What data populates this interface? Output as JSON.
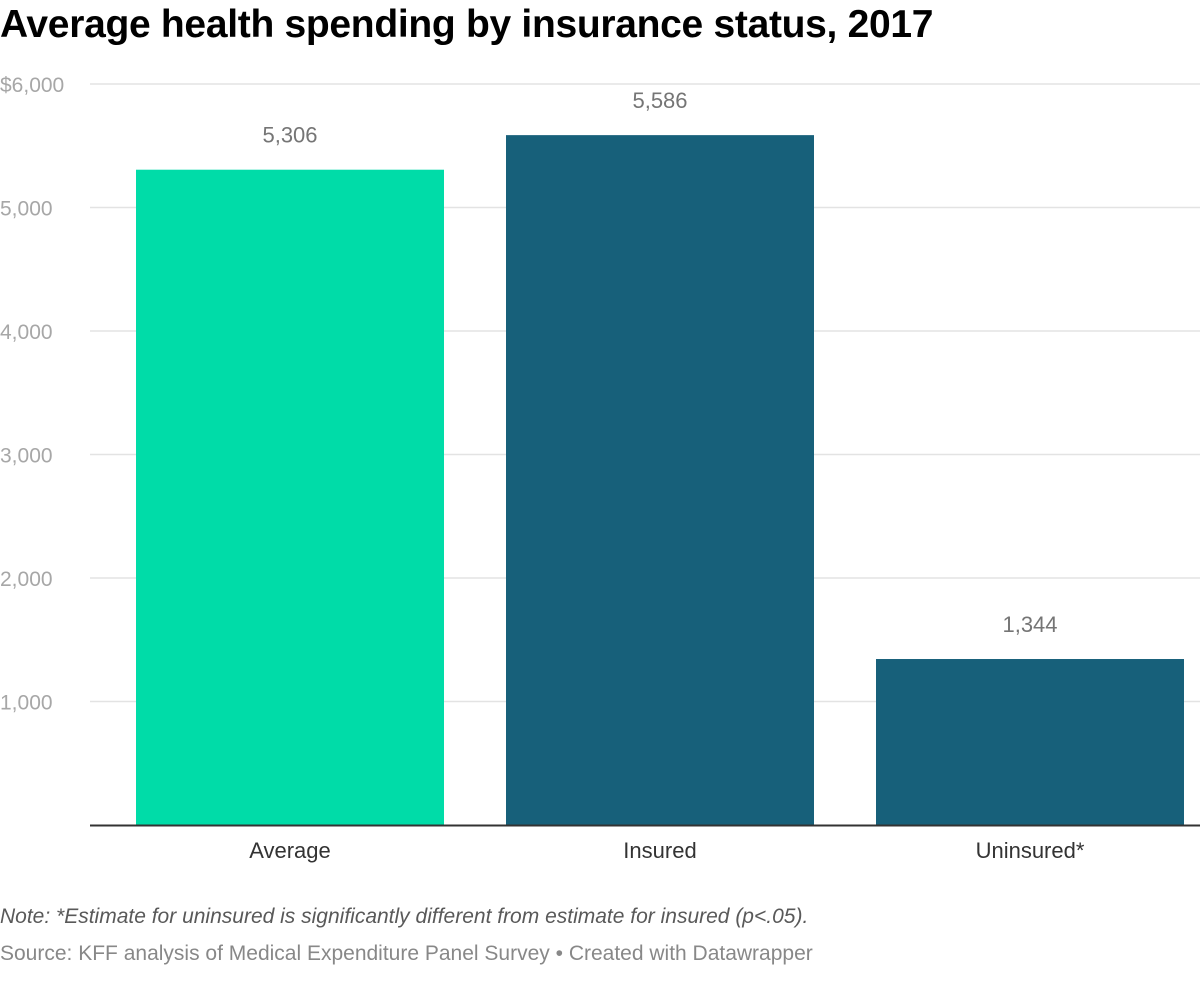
{
  "title": "Average health spending by insurance status, 2017",
  "note": "Note: *Estimate for uninsured is significantly different from estimate for insured (p<.05).",
  "source": {
    "prefix": "Source: ",
    "text": "KFF analysis of Medical Expenditure Panel Survey",
    "separator": " • ",
    "credit": "Created with Datawrapper"
  },
  "colors": {
    "average": "#00dca8",
    "insured": "#17607a",
    "uninsured": "#17607a",
    "grid": "#e3e3e3",
    "axis": "#333333",
    "tick_text": "#a7a7a7",
    "value_text": "#757575",
    "category_text": "#333333"
  },
  "chart_data": {
    "type": "bar",
    "categories": [
      "Average",
      "Insured",
      "Uninsured*"
    ],
    "values": [
      5306,
      5586,
      1344
    ],
    "value_labels": [
      "5,306",
      "5,586",
      "1,344"
    ],
    "ylim": [
      0,
      6000
    ],
    "yticks": [
      1000,
      2000,
      3000,
      4000,
      5000,
      6000
    ],
    "ytick_labels": [
      "1,000",
      "2,000",
      "3,000",
      "4,000",
      "5,000",
      "$6,000"
    ],
    "grid": true,
    "legend": "none",
    "xlabel": "",
    "ylabel": ""
  }
}
